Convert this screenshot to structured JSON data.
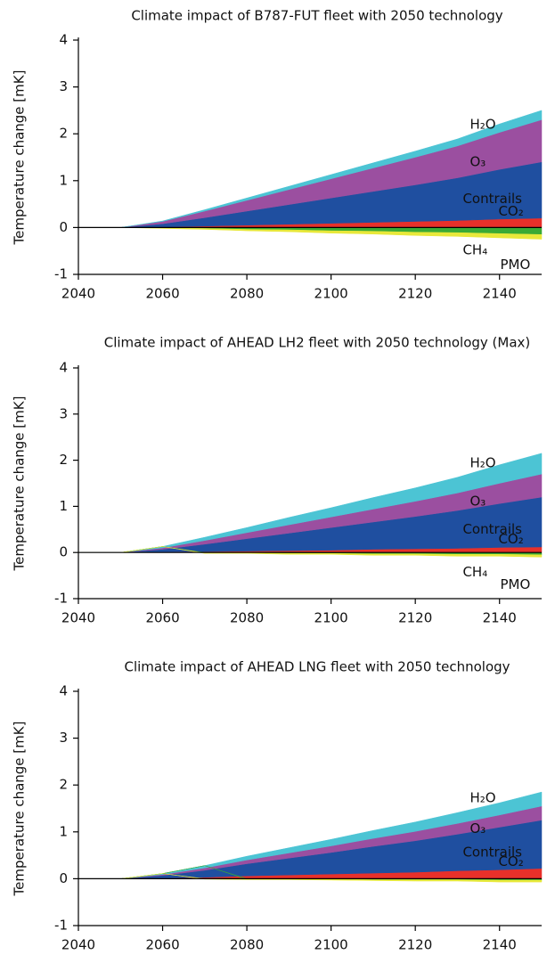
{
  "chart_data": [
    {
      "type": "area",
      "stacked": true,
      "title": "Climate impact of B787-FUT fleet with 2050 technology",
      "ylabel": "Temperature change [mK]",
      "x": [
        2040,
        2050,
        2060,
        2070,
        2080,
        2090,
        2100,
        2110,
        2120,
        2130,
        2140,
        2150
      ],
      "xlim": [
        2040,
        2150
      ],
      "xticks": [
        2040,
        2060,
        2080,
        2100,
        2120,
        2140
      ],
      "ylim": [
        -1,
        4
      ],
      "yticks": [
        -1,
        0,
        1,
        2,
        3,
        4
      ],
      "series": [
        {
          "name": "CO₂",
          "color": "#e8302a",
          "values": [
            0,
            0,
            0.01,
            0.03,
            0.05,
            0.07,
            0.09,
            0.11,
            0.13,
            0.15,
            0.18,
            0.2
          ]
        },
        {
          "name": "Contrails",
          "color": "#1f4fa0",
          "values": [
            0,
            0,
            0.07,
            0.18,
            0.3,
            0.42,
            0.54,
            0.66,
            0.78,
            0.91,
            1.06,
            1.2
          ]
        },
        {
          "name": "O₃",
          "color": "#9b4fa0",
          "values": [
            0,
            0,
            0.05,
            0.14,
            0.23,
            0.32,
            0.41,
            0.5,
            0.59,
            0.68,
            0.79,
            0.9
          ]
        },
        {
          "name": "H₂O",
          "color": "#4cc4d4",
          "values": [
            0,
            0,
            0.01,
            0.03,
            0.05,
            0.07,
            0.09,
            0.11,
            0.13,
            0.15,
            0.18,
            0.2
          ]
        },
        {
          "name": "CH₄",
          "color": "#3aaa35",
          "values": [
            0,
            0,
            -0.01,
            -0.02,
            -0.04,
            -0.05,
            -0.07,
            -0.08,
            -0.1,
            -0.11,
            -0.13,
            -0.15
          ]
        },
        {
          "name": "PMO",
          "color": "#e8e83a",
          "values": [
            0,
            0,
            -0.01,
            -0.02,
            -0.03,
            -0.04,
            -0.05,
            -0.06,
            -0.07,
            -0.08,
            -0.09,
            -0.1
          ]
        }
      ]
    },
    {
      "type": "area",
      "stacked": true,
      "title": "Climate impact of AHEAD LH2 fleet with 2050 technology (Max)",
      "ylabel": "Temperature change [mK]",
      "x": [
        2040,
        2050,
        2060,
        2070,
        2080,
        2090,
        2100,
        2110,
        2120,
        2130,
        2140,
        2150
      ],
      "xlim": [
        2040,
        2150
      ],
      "xticks": [
        2040,
        2060,
        2080,
        2100,
        2120,
        2140
      ],
      "ylim": [
        -1,
        4
      ],
      "yticks": [
        -1,
        0,
        1,
        2,
        3,
        4
      ],
      "series": [
        {
          "name": "CO₂",
          "color": "#e8302a",
          "values": [
            0,
            0,
            0.01,
            0.02,
            0.03,
            0.04,
            0.05,
            0.07,
            0.08,
            0.09,
            0.11,
            0.12
          ]
        },
        {
          "name": "Contrails",
          "color": "#1f4fa0",
          "values": [
            0,
            0,
            0.06,
            0.16,
            0.27,
            0.38,
            0.49,
            0.59,
            0.7,
            0.82,
            0.95,
            1.08
          ]
        },
        {
          "name": "O₃",
          "color": "#9b4fa0",
          "values": [
            0,
            0,
            0.03,
            0.08,
            0.13,
            0.18,
            0.23,
            0.28,
            0.33,
            0.38,
            0.44,
            0.5
          ]
        },
        {
          "name": "H₂O",
          "color": "#4cc4d4",
          "values": [
            0,
            0,
            0.03,
            0.07,
            0.11,
            0.16,
            0.2,
            0.25,
            0.29,
            0.34,
            0.4,
            0.45
          ]
        },
        {
          "name": "CH₄",
          "color": "#3aaa35",
          "values": [
            0,
            0,
            0,
            -0.01,
            -0.01,
            -0.02,
            -0.02,
            -0.03,
            -0.03,
            -0.04,
            -0.04,
            -0.05
          ]
        },
        {
          "name": "PMO",
          "color": "#e8e83a",
          "values": [
            0,
            0,
            0,
            -0.01,
            -0.01,
            -0.02,
            -0.02,
            -0.03,
            -0.03,
            -0.04,
            -0.04,
            -0.05
          ]
        }
      ]
    },
    {
      "type": "area",
      "stacked": true,
      "title": "Climate impact of AHEAD LNG fleet with 2050 technology",
      "ylabel": "Temperature change [mK]",
      "x": [
        2040,
        2050,
        2060,
        2070,
        2080,
        2090,
        2100,
        2110,
        2120,
        2130,
        2140,
        2150
      ],
      "xlim": [
        2040,
        2150
      ],
      "xticks": [
        2040,
        2060,
        2080,
        2100,
        2120,
        2140
      ],
      "ylim": [
        -1,
        4
      ],
      "yticks": [
        -1,
        0,
        1,
        2,
        3,
        4
      ],
      "series": [
        {
          "name": "CO₂",
          "color": "#e8302a",
          "values": [
            0,
            0,
            0.01,
            0.03,
            0.06,
            0.08,
            0.1,
            0.12,
            0.14,
            0.17,
            0.19,
            0.22
          ]
        },
        {
          "name": "Contrails",
          "color": "#1f4fa0",
          "values": [
            0,
            0,
            0.06,
            0.15,
            0.26,
            0.36,
            0.46,
            0.57,
            0.67,
            0.78,
            0.91,
            1.03
          ]
        },
        {
          "name": "O₃",
          "color": "#9b4fa0",
          "values": [
            0,
            0,
            0.02,
            0.05,
            0.08,
            0.11,
            0.14,
            0.17,
            0.2,
            0.23,
            0.26,
            0.3
          ]
        },
        {
          "name": "H₂O",
          "color": "#4cc4d4",
          "values": [
            0,
            0,
            0.02,
            0.05,
            0.08,
            0.11,
            0.14,
            0.17,
            0.2,
            0.23,
            0.26,
            0.3
          ]
        },
        {
          "color": "#3aaa35",
          "values": [
            0,
            0,
            0,
            0,
            -0.01,
            -0.01,
            -0.01,
            -0.02,
            -0.02,
            -0.02,
            -0.03,
            -0.03
          ]
        },
        {
          "color": "#e8e83a",
          "values": [
            0,
            0,
            0,
            -0.01,
            -0.01,
            -0.01,
            -0.02,
            -0.02,
            -0.03,
            -0.03,
            -0.04,
            -0.04
          ]
        }
      ]
    }
  ]
}
